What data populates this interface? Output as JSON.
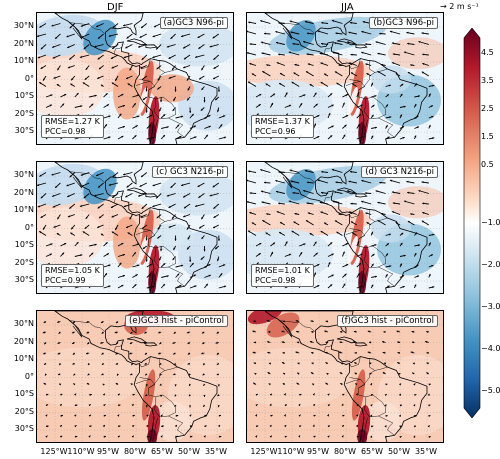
{
  "figure": {
    "season_left": "DJF",
    "season_right": "JJA",
    "reference_vector": "→ 2 m s⁻¹",
    "lat_ticks": [
      "30°N",
      "20°N",
      "10°N",
      "0°",
      "10°S",
      "20°S",
      "30°S"
    ],
    "lon_ticks": [
      "125°W",
      "110°W",
      "95°W",
      "80°W",
      "65°W",
      "50°W",
      "35°W"
    ]
  },
  "panels": [
    {
      "label": "(a)GC3 N96-pi",
      "rmse": "RMSE=1.27 K",
      "pcc": "PCC=0.98",
      "kind": "bias",
      "season": "DJF"
    },
    {
      "label": "(b)GC3 N96-pi",
      "rmse": "RMSE=1.37 K",
      "pcc": "PCC=0.96",
      "kind": "bias",
      "season": "JJA"
    },
    {
      "label": "(c) GC3 N216-pi",
      "rmse": "RMSE=1.05 K",
      "pcc": "PCC=0.99",
      "kind": "bias",
      "season": "DJF"
    },
    {
      "label": "(d) GC3 N216-pi",
      "rmse": "RMSE=1.01 K",
      "pcc": "PCC=0.98",
      "kind": "bias",
      "season": "JJA"
    },
    {
      "label": "(e)GC3 hist - piControl",
      "rmse": "",
      "pcc": "",
      "kind": "warming",
      "season": "DJF"
    },
    {
      "label": "(f)GC3 hist - piControl",
      "rmse": "",
      "pcc": "",
      "kind": "warming",
      "season": "JJA"
    }
  ],
  "colorbar": {
    "ticks": [
      "4.5",
      "3.5",
      "2.5",
      "1.5",
      "0.5",
      "−1.0",
      "−2.0",
      "−3.0",
      "−4.0",
      "−5.0"
    ],
    "colors": [
      "#67001f",
      "#b2182b",
      "#d6604d",
      "#f4a582",
      "#fddbc7",
      "#ffffff",
      "#d1e5f0",
      "#92c5de",
      "#4393c3",
      "#2166ac",
      "#053061"
    ]
  }
}
